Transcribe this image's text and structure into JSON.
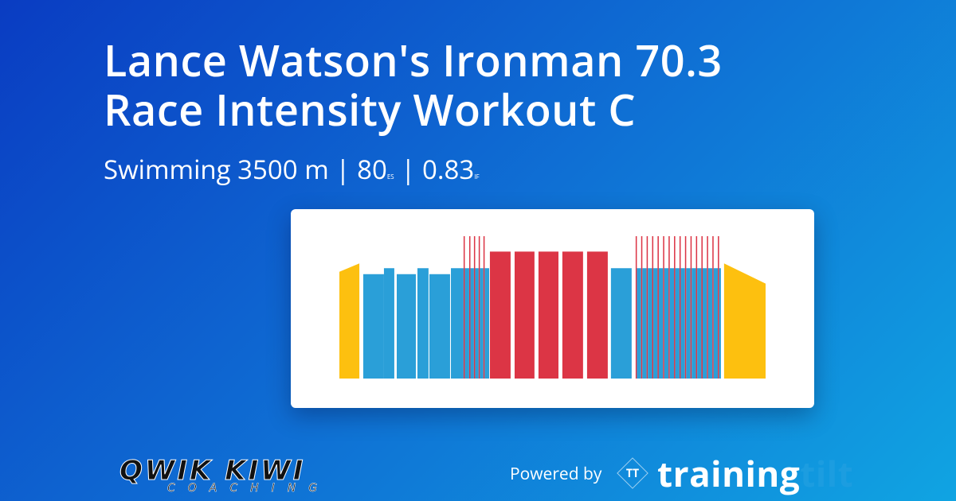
{
  "header": {
    "title_lines": [
      "Lance Watson's Ironman 70.3",
      "Race Intensity Workout C"
    ],
    "sport": "Swimming",
    "distance": "3500 m",
    "separator": "|",
    "stress": 80,
    "stress_unit": "ES",
    "intensity": 0.83,
    "intensity_unit": "IF"
  },
  "footer": {
    "logo": "QWIK KIWI",
    "logo_sub": "COACHING",
    "powered": "Powered by",
    "brand_icon": "TT",
    "brand_a": "training",
    "brand_b": "tilt"
  },
  "chart_data": {
    "type": "workout",
    "xlim": [
      0,
      3500
    ],
    "ylim": [
      0,
      1.2
    ],
    "intervals": [
      {
        "x": [
          0,
          164
        ],
        "y": [
          0.9,
          0.97
        ],
        "color": "#fdc00f"
      },
      {
        "x": [
          196,
          366
        ],
        "y": [
          0.88
        ],
        "color": "#2a9fd8"
      },
      {
        "x": [
          366,
          451
        ],
        "y": [
          0.93
        ],
        "color": "#2a9fd8"
      },
      {
        "x": [
          471,
          628
        ],
        "y": [
          0.88
        ],
        "color": "#2a9fd8"
      },
      {
        "x": [
          641,
          732
        ],
        "y": [
          0.93
        ],
        "color": "#2a9fd8"
      },
      {
        "x": [
          739,
          909
        ],
        "y": [
          0.88
        ],
        "color": "#2a9fd8"
      },
      {
        "x": [
          916,
          1020
        ],
        "y": [
          0.93
        ],
        "color": "#2a9fd8"
      },
      {
        "x": [
          1020,
          1030
        ],
        "y": [
          1.2
        ],
        "color": "#dc3545"
      },
      {
        "x": [
          1030,
          1066
        ],
        "y": [
          0.93
        ],
        "color": "#2a9fd8"
      },
      {
        "x": [
          1066,
          1076
        ],
        "y": [
          1.2
        ],
        "color": "#dc3545"
      },
      {
        "x": [
          1076,
          1105
        ],
        "y": [
          0.93
        ],
        "color": "#2a9fd8"
      },
      {
        "x": [
          1105,
          1115
        ],
        "y": [
          1.2
        ],
        "color": "#dc3545"
      },
      {
        "x": [
          1115,
          1144
        ],
        "y": [
          0.93
        ],
        "color": "#2a9fd8"
      },
      {
        "x": [
          1144,
          1154
        ],
        "y": [
          1.2
        ],
        "color": "#dc3545"
      },
      {
        "x": [
          1154,
          1183
        ],
        "y": [
          0.93
        ],
        "color": "#2a9fd8"
      },
      {
        "x": [
          1183,
          1193
        ],
        "y": [
          1.2
        ],
        "color": "#dc3545"
      },
      {
        "x": [
          1193,
          1230
        ],
        "y": [
          0.93
        ],
        "color": "#2a9fd8"
      },
      {
        "x": [
          1236,
          1406
        ],
        "y": [
          1.07
        ],
        "color": "#dc3545"
      },
      {
        "x": [
          1439,
          1602
        ],
        "y": [
          1.07
        ],
        "color": "#dc3545"
      },
      {
        "x": [
          1635,
          1799
        ],
        "y": [
          1.07
        ],
        "color": "#dc3545"
      },
      {
        "x": [
          1831,
          2001
        ],
        "y": [
          1.07
        ],
        "color": "#dc3545"
      },
      {
        "x": [
          2034,
          2204
        ],
        "y": [
          1.07
        ],
        "color": "#dc3545"
      },
      {
        "x": [
          2230,
          2400
        ],
        "y": [
          0.93
        ],
        "color": "#2a9fd8"
      },
      {
        "x": [
          2433,
          2443
        ],
        "y": [
          1.2
        ],
        "color": "#dc3545"
      },
      {
        "x": [
          2443,
          2478
        ],
        "y": [
          0.93
        ],
        "color": "#2a9fd8"
      },
      {
        "x": [
          2478,
          2488
        ],
        "y": [
          1.2
        ],
        "color": "#dc3545"
      },
      {
        "x": [
          2488,
          2523
        ],
        "y": [
          0.93
        ],
        "color": "#2a9fd8"
      },
      {
        "x": [
          2523,
          2533
        ],
        "y": [
          1.2
        ],
        "color": "#dc3545"
      },
      {
        "x": [
          2533,
          2568
        ],
        "y": [
          0.93
        ],
        "color": "#2a9fd8"
      },
      {
        "x": [
          2568,
          2578
        ],
        "y": [
          1.2
        ],
        "color": "#dc3545"
      },
      {
        "x": [
          2578,
          2613
        ],
        "y": [
          0.93
        ],
        "color": "#2a9fd8"
      },
      {
        "x": [
          2613,
          2623
        ],
        "y": [
          1.2
        ],
        "color": "#dc3545"
      },
      {
        "x": [
          2623,
          2658
        ],
        "y": [
          0.93
        ],
        "color": "#2a9fd8"
      },
      {
        "x": [
          2658,
          2668
        ],
        "y": [
          1.2
        ],
        "color": "#dc3545"
      },
      {
        "x": [
          2668,
          2703
        ],
        "y": [
          0.93
        ],
        "color": "#2a9fd8"
      },
      {
        "x": [
          2703,
          2713
        ],
        "y": [
          1.2
        ],
        "color": "#dc3545"
      },
      {
        "x": [
          2713,
          2748
        ],
        "y": [
          0.93
        ],
        "color": "#2a9fd8"
      },
      {
        "x": [
          2748,
          2758
        ],
        "y": [
          1.2
        ],
        "color": "#dc3545"
      },
      {
        "x": [
          2758,
          2793
        ],
        "y": [
          0.93
        ],
        "color": "#2a9fd8"
      },
      {
        "x": [
          2793,
          2803
        ],
        "y": [
          1.2
        ],
        "color": "#dc3545"
      },
      {
        "x": [
          2803,
          2838
        ],
        "y": [
          0.93
        ],
        "color": "#2a9fd8"
      },
      {
        "x": [
          2838,
          2848
        ],
        "y": [
          1.2
        ],
        "color": "#dc3545"
      },
      {
        "x": [
          2848,
          2883
        ],
        "y": [
          0.93
        ],
        "color": "#2a9fd8"
      },
      {
        "x": [
          2883,
          2893
        ],
        "y": [
          1.2
        ],
        "color": "#dc3545"
      },
      {
        "x": [
          2893,
          2928
        ],
        "y": [
          0.93
        ],
        "color": "#2a9fd8"
      },
      {
        "x": [
          2928,
          2938
        ],
        "y": [
          1.2
        ],
        "color": "#dc3545"
      },
      {
        "x": [
          2938,
          2973
        ],
        "y": [
          0.93
        ],
        "color": "#2a9fd8"
      },
      {
        "x": [
          2973,
          2983
        ],
        "y": [
          1.2
        ],
        "color": "#dc3545"
      },
      {
        "x": [
          2983,
          3018
        ],
        "y": [
          0.93
        ],
        "color": "#2a9fd8"
      },
      {
        "x": [
          3018,
          3028
        ],
        "y": [
          1.2
        ],
        "color": "#dc3545"
      },
      {
        "x": [
          3028,
          3063
        ],
        "y": [
          0.93
        ],
        "color": "#2a9fd8"
      },
      {
        "x": [
          3063,
          3073
        ],
        "y": [
          1.2
        ],
        "color": "#dc3545"
      },
      {
        "x": [
          3073,
          3108
        ],
        "y": [
          0.93
        ],
        "color": "#2a9fd8"
      },
      {
        "x": [
          3108,
          3118
        ],
        "y": [
          1.2
        ],
        "color": "#dc3545"
      },
      {
        "x": [
          3118,
          3133
        ],
        "y": [
          0.93
        ],
        "color": "#2a9fd8"
      },
      {
        "x": [
          3159,
          3500
        ],
        "y": [
          0.97,
          0.8
        ],
        "color": "#fdc00f"
      }
    ]
  }
}
